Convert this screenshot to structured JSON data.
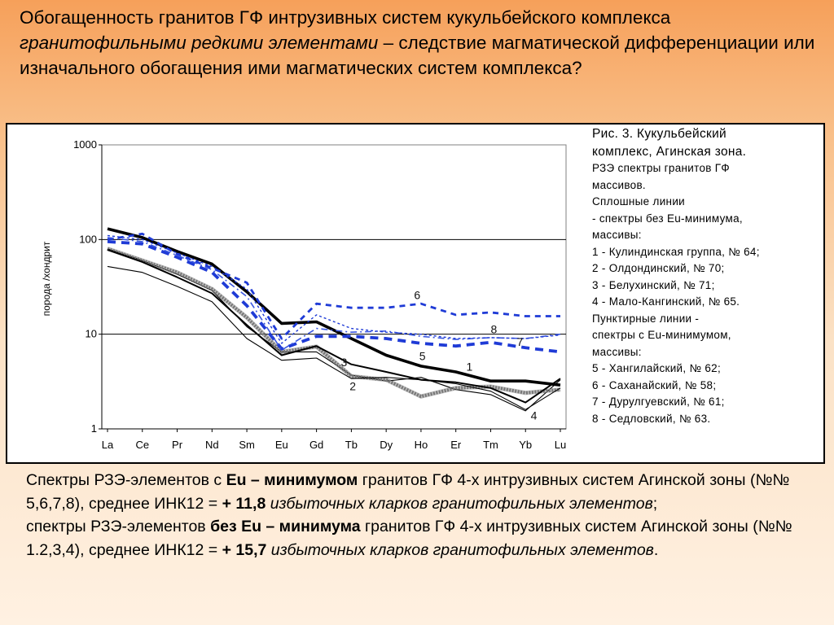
{
  "title": {
    "part1": "Обогащенность гранитов ГФ интрузивных систем кукульбейского комплекса ",
    "italic": "гранитофильными редкими  элементами",
    "part2": " – следствие магматической дифференциации или изначального обогащения ими магматических систем  комплекса?"
  },
  "caption": {
    "lines": [
      "Рис. 3. Кукульбейский",
      "комплекс, Агинская зона.",
      "РЗЭ спектры гранитов ГФ",
      "массивов.",
      "Сплошные линии",
      "- спектры без Eu-минимума,",
      "массивы:",
      "1 - Кулиндинская группа, № 64;",
      "2 - Олдондинский, № 70;",
      "3 - Белухинский, № 71;",
      "4 - Мало-Кангинский, № 65.",
      "Пунктирные линии -",
      "спектры с Eu-минимумом,",
      " массивы:",
      "5 - Хангилайский, № 62;",
      "6 - Саханайский, № 58;",
      "7 - Дурулгуевский, № 61;",
      "8 - Седловский, № 63."
    ]
  },
  "bottom": {
    "p1": {
      "a": "Спектры РЗЭ-элементов с ",
      "b": "Eu – минимумом",
      "c": " гранитов ГФ 4-х интрузивных систем Агинской зоны  (№№ 5,6,7,8), среднее ИНК12 = ",
      "d": "+ 11,8",
      "e": " избыточных кларков гранитофильных элементов",
      "f": ";"
    },
    "p2": {
      "a": "спектры РЗЭ-элементов ",
      "b": "без Eu – минимума",
      "c": " гранитов ГФ 4-х интрузивных систем Агинской зоны  (№№ 1.2,3,4), среднее ИНК12 = ",
      "d": "+ 15,7",
      "e": " избыточных кларков гранитофильных элементов",
      "f": "."
    }
  },
  "chart_data": {
    "type": "line",
    "ylabel": "порода /хондрит",
    "y_scale": "log",
    "ylim": [
      1,
      1000
    ],
    "y_ticks": [
      "1",
      "10",
      "100",
      "1000"
    ],
    "grid": "horizontal at 10 and 100",
    "categories": [
      "La",
      "Ce",
      "Pr",
      "Nd",
      "Sm",
      "Eu",
      "Gd",
      "Tb",
      "Dy",
      "Ho",
      "Er",
      "Tm",
      "Yb",
      "Lu"
    ],
    "series": [
      {
        "name": "1",
        "style": "solid-bold",
        "color": "#000000",
        "values": [
          130,
          105,
          75,
          55,
          28,
          13,
          13.5,
          9,
          6,
          4.6,
          4,
          3.2,
          3.2,
          2.9
        ]
      },
      {
        "name": "2",
        "style": "solid-thin",
        "color": "#000000",
        "values": [
          80,
          60,
          43,
          29,
          12,
          6.5,
          6.5,
          3.7,
          3.2,
          3.5,
          2.6,
          2.3,
          1.55,
          3.3
        ]
      },
      {
        "name": "3",
        "style": "solid-hatched",
        "color": "#777777",
        "values": [
          80,
          60,
          45,
          30,
          15,
          6.5,
          7.4,
          3.6,
          3.3,
          2.2,
          2.7,
          2.8,
          2.4,
          2.6
        ]
      },
      {
        "name": "4",
        "style": "solid",
        "color": "#000000",
        "values": [
          78,
          58,
          40,
          27,
          12.5,
          6,
          7.5,
          4.8,
          4,
          3.3,
          3.1,
          2.7,
          1.9,
          3.4
        ]
      },
      {
        "name": "",
        "style": "solid-thin",
        "color": "#000000",
        "values": [
          52,
          45,
          32,
          22,
          9,
          5.3,
          5.6,
          3.4,
          3.5,
          3.3,
          3,
          2.5,
          1.6,
          2.7
        ]
      },
      {
        "name": "5",
        "style": "dashed",
        "color": "#1f3bd6",
        "values": [
          95,
          90,
          65,
          45,
          20,
          7,
          9.5,
          9.5,
          9,
          8,
          7.5,
          8.2,
          7.2,
          6.5
        ]
      },
      {
        "name": "6",
        "style": "dotted",
        "color": "#1f3bd6",
        "values": [
          100,
          115,
          70,
          50,
          35,
          9,
          21,
          19,
          19,
          21,
          16,
          17,
          15.5,
          15.5
        ]
      },
      {
        "name": "7",
        "style": "dash-dot",
        "color": "#3a57e0",
        "values": [
          105,
          95,
          68,
          48,
          25,
          6.8,
          11.5,
          10.5,
          10.8,
          9.5,
          8.8,
          9.2,
          9,
          10
        ]
      },
      {
        "name": "8",
        "style": "dashed-small",
        "color": "#1f3bd6",
        "values": [
          110,
          100,
          72,
          52,
          30,
          8,
          16,
          11.5,
          10.5,
          10,
          9,
          9.2,
          9,
          9.8
        ]
      }
    ],
    "annotations": [
      "1",
      "2",
      "3",
      "4",
      "5",
      "6",
      "7",
      "8"
    ]
  }
}
